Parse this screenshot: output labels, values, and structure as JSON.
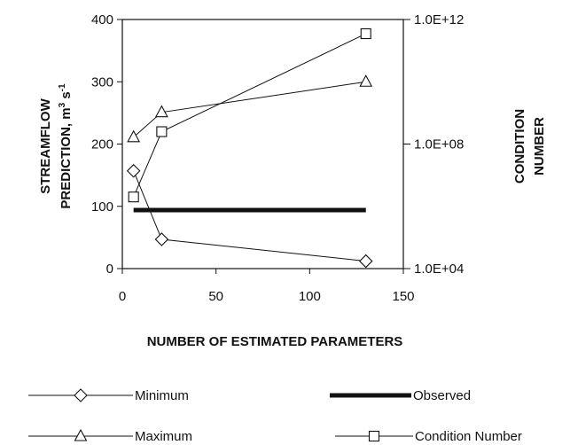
{
  "chart_data": {
    "type": "line",
    "title": "",
    "xlabel": "NUMBER OF ESTIMATED PARAMETERS",
    "ylabel_lines": [
      "STREAMFLOW",
      "PREDICTION, m",
      "3",
      " s",
      "-1"
    ],
    "y2label_lines": [
      "CONDITION",
      "NUMBER"
    ],
    "xlim": [
      0,
      150
    ],
    "ylim": [
      0,
      400
    ],
    "y2lim": [
      10000,
      1000000000000
    ],
    "y2_scale": "log",
    "grid": false,
    "legend_position": "bottom",
    "x_ticks": [
      0,
      50,
      100,
      150
    ],
    "y_ticks": [
      0,
      100,
      200,
      300,
      400
    ],
    "y2_ticks": [
      {
        "value": 10000,
        "label": "1.0E+04"
      },
      {
        "value": 100000000,
        "label": "1.0E+08"
      },
      {
        "value": 1000000000000,
        "label": "1.0E+12"
      }
    ],
    "series": [
      {
        "name": "Minimum",
        "marker": "diamond",
        "axis": "left",
        "x": [
          6,
          21,
          130
        ],
        "y": [
          157,
          47,
          12
        ]
      },
      {
        "name": "Maximum",
        "marker": "triangle",
        "axis": "left",
        "x": [
          6,
          21,
          130
        ],
        "y": [
          211,
          251,
          300
        ]
      },
      {
        "name": "Observed",
        "marker": "none",
        "line": "thick",
        "axis": "left",
        "x": [
          6,
          130
        ],
        "y": [
          94,
          94
        ]
      },
      {
        "name": "Condition Number",
        "marker": "square",
        "axis": "right",
        "x": [
          6,
          21,
          130
        ],
        "y": [
          2000000,
          250000000,
          350000000000
        ]
      }
    ]
  },
  "colors": {
    "line": "#111111",
    "marker_fill": "#ffffff"
  }
}
